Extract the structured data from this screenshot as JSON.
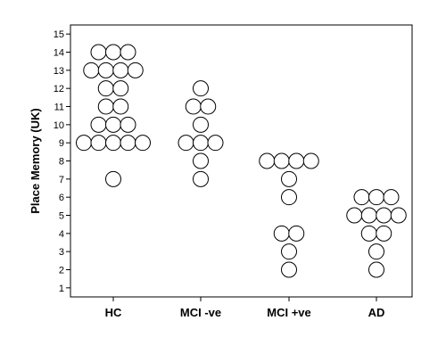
{
  "chart_data": {
    "type": "scatter",
    "subtype": "dot-plot",
    "title": "",
    "xlabel": "",
    "ylabel": "Place Memory (UK)",
    "categories": [
      "HC",
      "MCI -ve",
      "MCI +ve",
      "AD"
    ],
    "ylim": [
      0.5,
      15.5
    ],
    "yticks": [
      1,
      2,
      3,
      4,
      5,
      6,
      7,
      8,
      9,
      10,
      11,
      12,
      13,
      14,
      15
    ],
    "grid": false,
    "legend": "none",
    "marker": "open-circle",
    "counts": [
      {
        "category": "HC",
        "values": {
          "7": 1,
          "9": 5,
          "10": 3,
          "11": 2,
          "12": 2,
          "13": 4,
          "14": 3
        }
      },
      {
        "category": "MCI -ve",
        "values": {
          "7": 1,
          "8": 1,
          "9": 3,
          "10": 1,
          "11": 2,
          "12": 1
        }
      },
      {
        "category": "MCI +ve",
        "values": {
          "2": 1,
          "3": 1,
          "4": 2,
          "6": 1,
          "7": 1,
          "8": 4
        }
      },
      {
        "category": "AD",
        "values": {
          "2": 1,
          "3": 1,
          "4": 2,
          "5": 4,
          "6": 3
        }
      }
    ]
  },
  "colors": {
    "marker_stroke": "#000000",
    "marker_fill": "#ffffff",
    "axis": "#000000"
  }
}
